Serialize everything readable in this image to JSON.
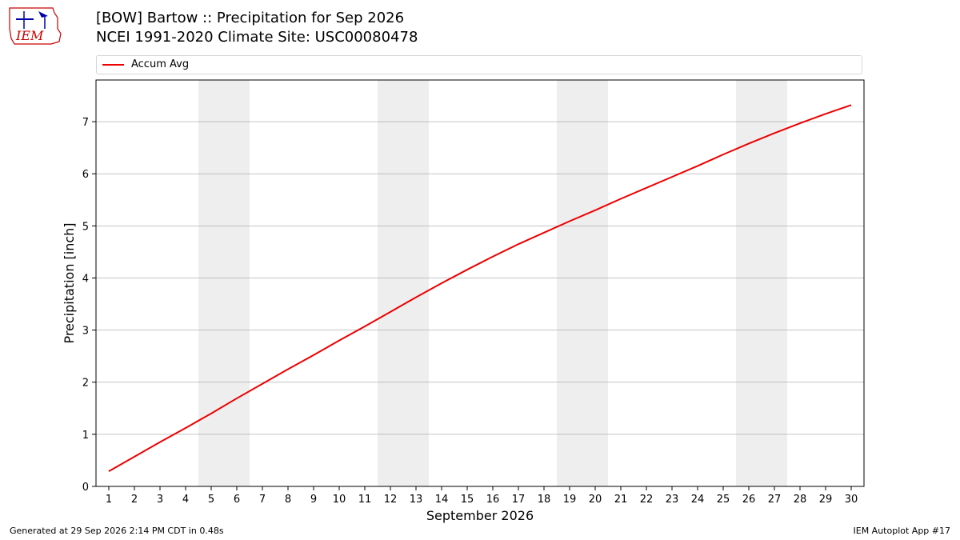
{
  "header": {
    "title": "[BOW] Bartow :: Precipitation for Sep 2026",
    "subtitle": "NCEI 1991-2020 Climate Site: USC00080478",
    "logo_text": "IEM"
  },
  "footer": {
    "left": "Generated at 29 Sep 2026 2:14 PM CDT in 0.48s",
    "right": "IEM Autoplot App #17"
  },
  "colors": {
    "series": "#ee0000",
    "weekend_band": "#eeeeee",
    "grid": "#b0b0b0",
    "logo": "#cc0000"
  },
  "chart_data": {
    "type": "line",
    "xlabel": "September 2026",
    "ylabel": "Precipitation [inch]",
    "x": [
      1,
      2,
      3,
      4,
      5,
      6,
      7,
      8,
      9,
      10,
      11,
      12,
      13,
      14,
      15,
      16,
      17,
      18,
      19,
      20,
      21,
      22,
      23,
      24,
      25,
      26,
      27,
      28,
      29,
      30
    ],
    "xlim": [
      0.5,
      30.5
    ],
    "ylim": [
      0,
      7.8
    ],
    "yticks": [
      0,
      1,
      2,
      3,
      4,
      5,
      6,
      7
    ],
    "grid": "horizontal",
    "legend_position": "top",
    "weekend_bands": [
      [
        4.5,
        6.5
      ],
      [
        11.5,
        13.5
      ],
      [
        18.5,
        20.5
      ],
      [
        25.5,
        27.5
      ]
    ],
    "series": [
      {
        "name": "Accum Avg",
        "values": [
          0.29,
          0.57,
          0.85,
          1.12,
          1.4,
          1.69,
          1.97,
          2.25,
          2.52,
          2.8,
          3.07,
          3.35,
          3.63,
          3.9,
          4.16,
          4.41,
          4.65,
          4.87,
          5.09,
          5.3,
          5.52,
          5.73,
          5.94,
          6.15,
          6.37,
          6.58,
          6.78,
          6.97,
          7.15,
          7.32
        ]
      }
    ]
  }
}
